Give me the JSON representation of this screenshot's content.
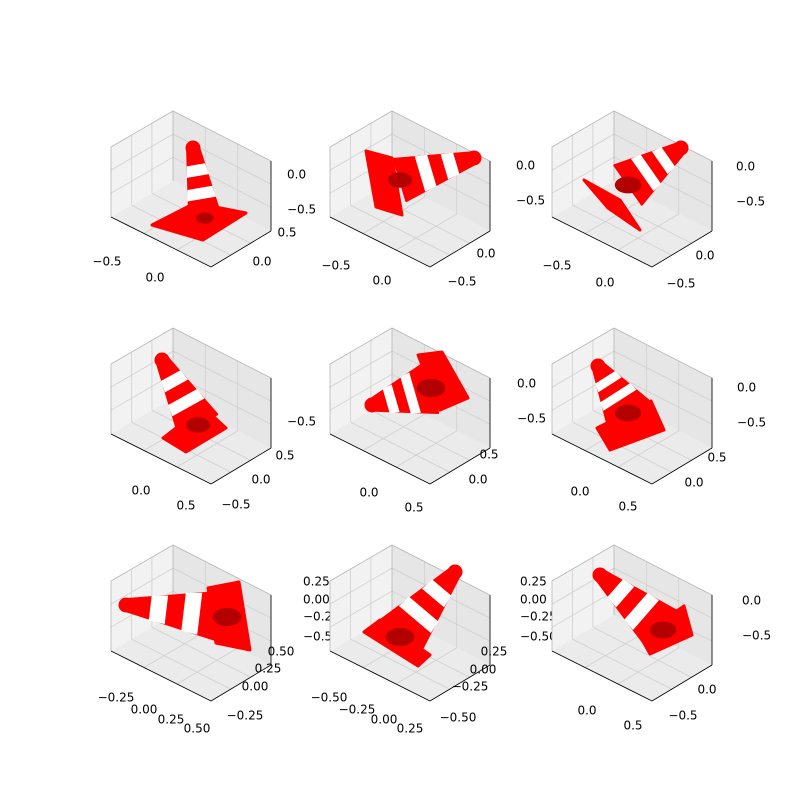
{
  "figure": {
    "rows": 3,
    "cols": 3,
    "background": "#ffffff"
  },
  "colors": {
    "pane_left": "#f2f2f2",
    "pane_right": "#e6e6e6",
    "pane_floor": "#ebebeb",
    "grid": "#cfcfcf",
    "cone_red": "#ff0000",
    "cone_dark": "#b30000",
    "cone_white": "#ffffff"
  },
  "chart_data": [
    {
      "type": "scatter3d",
      "subject": "traffic cone point cloud",
      "pose": "upright",
      "x_ticks": [
        "−0.5",
        "0.0"
      ],
      "y_ticks": [
        "0.5",
        "0.0"
      ],
      "z_ticks": [
        "0.0",
        "−0.5"
      ],
      "grid": true
    },
    {
      "type": "scatter3d",
      "subject": "traffic cone point cloud",
      "pose": "lying, tip toward +x",
      "x_ticks": [
        "−0.5",
        "0.0"
      ],
      "y_ticks": [
        "0.0",
        "−0.5"
      ],
      "z_ticks": [
        "0.0",
        "−0.5"
      ],
      "grid": true
    },
    {
      "type": "scatter3d",
      "subject": "traffic cone point cloud",
      "pose": "tilted, tip upper right",
      "x_ticks": [
        "−0.5",
        "0.0"
      ],
      "y_ticks": [
        "0.0",
        "−0.5"
      ],
      "z_ticks": [
        "0.0",
        "−0.5"
      ],
      "grid": true
    },
    {
      "type": "scatter3d",
      "subject": "traffic cone point cloud",
      "pose": "tilted, tip upper left",
      "x_ticks": [
        "0.0",
        "0.5"
      ],
      "y_ticks": [
        "0.5",
        "0.0",
        "−0.5"
      ],
      "z_ticks": [
        "−0.5"
      ],
      "grid": true
    },
    {
      "type": "scatter3d",
      "subject": "traffic cone point cloud",
      "pose": "lying, tip toward −x",
      "x_ticks": [
        "0.0",
        "0.5"
      ],
      "y_ticks": [
        "0.5",
        "0.0"
      ],
      "z_ticks": [
        "0.0",
        "−0.5"
      ],
      "grid": true
    },
    {
      "type": "scatter3d",
      "subject": "traffic cone point cloud",
      "pose": "tilted, tip upper left",
      "x_ticks": [
        "0.0",
        "0.5"
      ],
      "y_ticks": [
        "0.5",
        "0.0"
      ],
      "z_ticks": [
        "0.0",
        "−0.5"
      ],
      "grid": true
    },
    {
      "type": "scatter3d",
      "subject": "traffic cone point cloud",
      "pose": "lying, tip toward −x",
      "x_ticks": [
        "−0.25",
        "0.00",
        "0.25",
        "0.50"
      ],
      "y_ticks": [
        "0.50",
        "0.25",
        "0.00",
        "−0.25"
      ],
      "z_ticks": [
        "0.25",
        "0.00",
        "−0.25",
        "−0.50"
      ],
      "grid": true
    },
    {
      "type": "scatter3d",
      "subject": "traffic cone point cloud",
      "pose": "tilted, tip upper right",
      "x_ticks": [
        "−0.50",
        "−0.25",
        "0.00",
        "0.25"
      ],
      "y_ticks": [
        "0.25",
        "0.00",
        "−0.25",
        "−0.50"
      ],
      "z_ticks": [
        "0.25",
        "0.00",
        "−0.25",
        "−0.50"
      ],
      "grid": true
    },
    {
      "type": "scatter3d",
      "subject": "traffic cone point cloud",
      "pose": "tilted, tip upper left",
      "x_ticks": [
        "0.0",
        "0.5"
      ],
      "y_ticks": [
        "0.0",
        "−0.5"
      ],
      "z_ticks": [
        "0.0",
        "−0.5"
      ],
      "grid": true
    }
  ]
}
